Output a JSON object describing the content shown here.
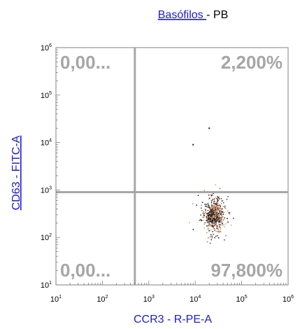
{
  "chart_data": {
    "type": "scatter",
    "title": {
      "link": "Basófilos ",
      "rest": " - PB"
    },
    "xlabel": "CCR3 - R-PE-A",
    "ylabel": "CD63 - FITC-A",
    "x_scale": "log",
    "y_scale": "log",
    "xlim": [
      10,
      1000000
    ],
    "ylim": [
      10,
      1000000
    ],
    "x_ticks": [
      {
        "value": 10,
        "label": "10",
        "exp": "1"
      },
      {
        "value": 100,
        "label": "10",
        "exp": "2"
      },
      {
        "value": 1000,
        "label": "10",
        "exp": "3"
      },
      {
        "value": 10000,
        "label": "10",
        "exp": "4"
      },
      {
        "value": 100000,
        "label": "10",
        "exp": "5"
      },
      {
        "value": 1000000,
        "label": "10",
        "exp": "6"
      }
    ],
    "y_ticks": [
      {
        "value": 10,
        "label": "10",
        "exp": "1"
      },
      {
        "value": 100,
        "label": "10",
        "exp": "2"
      },
      {
        "value": 1000,
        "label": "10",
        "exp": "3"
      },
      {
        "value": 10000,
        "label": "10",
        "exp": "4"
      },
      {
        "value": 100000,
        "label": "10",
        "exp": "5"
      },
      {
        "value": 1000000,
        "label": "10",
        "exp": "6"
      }
    ],
    "gates": {
      "x": 500,
      "y": 900
    },
    "quadrants": {
      "upper_left": "0,00...",
      "upper_right": "2,200%",
      "lower_left": "0,00...",
      "lower_right": "97,800%"
    },
    "cluster": {
      "center_x": 25000,
      "center_y": 300,
      "n_points": 450,
      "colors": [
        "#1a1a1a",
        "#2b2b2b",
        "#4a4a4a",
        "#c98a5a",
        "#e0a27a",
        "#b07050"
      ]
    },
    "outliers": [
      {
        "x": 9000,
        "y": 9000
      },
      {
        "x": 20000,
        "y": 20000
      }
    ],
    "colors": {
      "gate": "#a6a6a6",
      "frame": "#808080",
      "quadrant_text": "#a6a6a6",
      "axis_title": "#1a1adb"
    }
  }
}
